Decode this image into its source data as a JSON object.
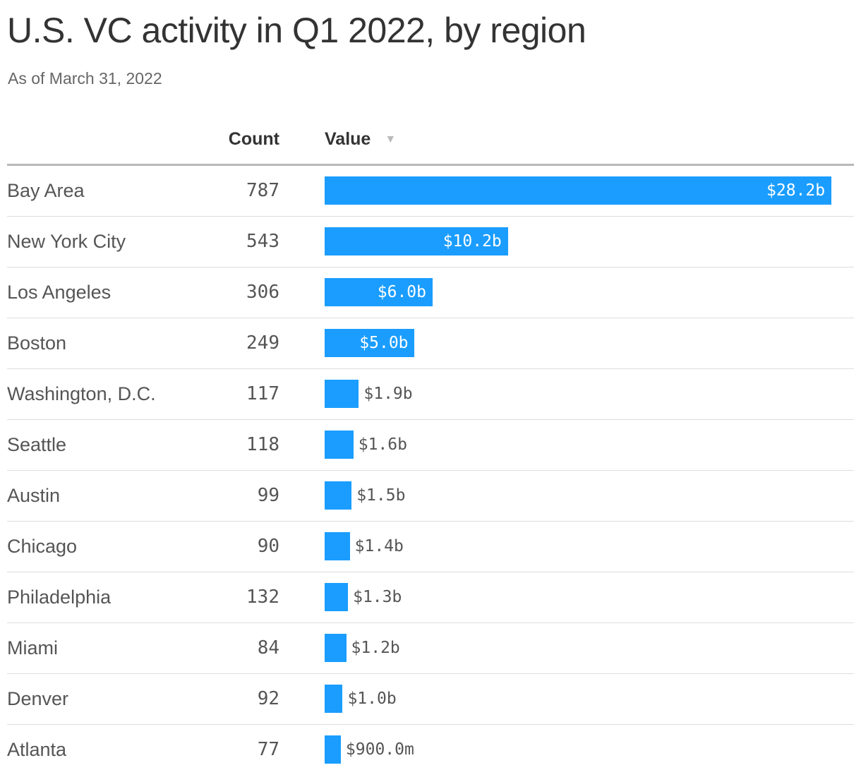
{
  "chart_data": {
    "type": "table",
    "title": "U.S. VC activity in Q1 2022, by region",
    "subtitle": "As of March 31, 2022",
    "columns": [
      "Count",
      "Value"
    ],
    "sort_column": "Value",
    "sort_direction": "descending",
    "bar_color": "#1a9dff",
    "value_unit": "billion USD",
    "rows": [
      {
        "region": "Bay Area",
        "count": "787",
        "value": 28.2,
        "value_label": "$28.2b"
      },
      {
        "region": "New York City",
        "count": "543",
        "value": 10.2,
        "value_label": "$10.2b"
      },
      {
        "region": "Los Angeles",
        "count": "306",
        "value": 6.0,
        "value_label": "$6.0b"
      },
      {
        "region": "Boston",
        "count": "249",
        "value": 5.0,
        "value_label": "$5.0b"
      },
      {
        "region": "Washington, D.C.",
        "count": "117",
        "value": 1.9,
        "value_label": "$1.9b"
      },
      {
        "region": "Seattle",
        "count": "118",
        "value": 1.6,
        "value_label": "$1.6b"
      },
      {
        "region": "Austin",
        "count": "99",
        "value": 1.5,
        "value_label": "$1.5b"
      },
      {
        "region": "Chicago",
        "count": "90",
        "value": 1.4,
        "value_label": "$1.4b"
      },
      {
        "region": "Philadelphia",
        "count": "132",
        "value": 1.3,
        "value_label": "$1.3b"
      },
      {
        "region": "Miami",
        "count": "84",
        "value": 1.2,
        "value_label": "$1.2b"
      },
      {
        "region": "Denver",
        "count": "92",
        "value": 1.0,
        "value_label": "$1.0b"
      },
      {
        "region": "Atlanta",
        "count": "77",
        "value": 0.9,
        "value_label": "$900.0m"
      }
    ]
  }
}
